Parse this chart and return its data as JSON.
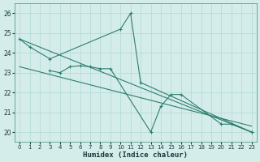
{
  "xlabel": "Humidex (Indice chaleur)",
  "background_color": "#d4edeb",
  "grid_color": "#b0d8d5",
  "line_color": "#2e7d6e",
  "xlim": [
    -0.5,
    23.5
  ],
  "ylim": [
    19.5,
    26.5
  ],
  "yticks": [
    20,
    21,
    22,
    23,
    24,
    25,
    26
  ],
  "xticks": [
    0,
    1,
    2,
    3,
    4,
    5,
    6,
    7,
    8,
    9,
    10,
    11,
    12,
    13,
    14,
    15,
    16,
    17,
    18,
    19,
    20,
    21,
    22,
    23
  ],
  "lines": [
    {
      "x": [
        0,
        1,
        3,
        10,
        11,
        12,
        23
      ],
      "y": [
        24.7,
        24.3,
        23.7,
        25.2,
        26.0,
        22.5,
        20.0
      ],
      "marker": true
    },
    {
      "comment": "Line 2 - middle cluster line: 3=23.1, 4=23.0, 5=23.3, 6=23.35, 7=23.3, 8=23.2, 9=23.2, then 13=20.0, 14=21.3, 15=21.9, 16=21.9, then 20=20.4, 21=20.4, 23=20",
      "x": [
        3,
        4,
        5,
        6,
        7,
        8,
        9,
        13,
        14,
        15,
        16,
        20,
        21,
        23
      ],
      "y": [
        23.1,
        23.0,
        23.3,
        23.35,
        23.3,
        23.2,
        23.2,
        20.0,
        21.3,
        21.9,
        21.9,
        20.4,
        20.4,
        20.0
      ],
      "marker": true
    },
    {
      "x": [
        0,
        23
      ],
      "y": [
        24.7,
        20.0
      ],
      "marker": false
    },
    {
      "x": [
        0,
        23
      ],
      "y": [
        23.3,
        20.3
      ],
      "marker": false
    }
  ]
}
